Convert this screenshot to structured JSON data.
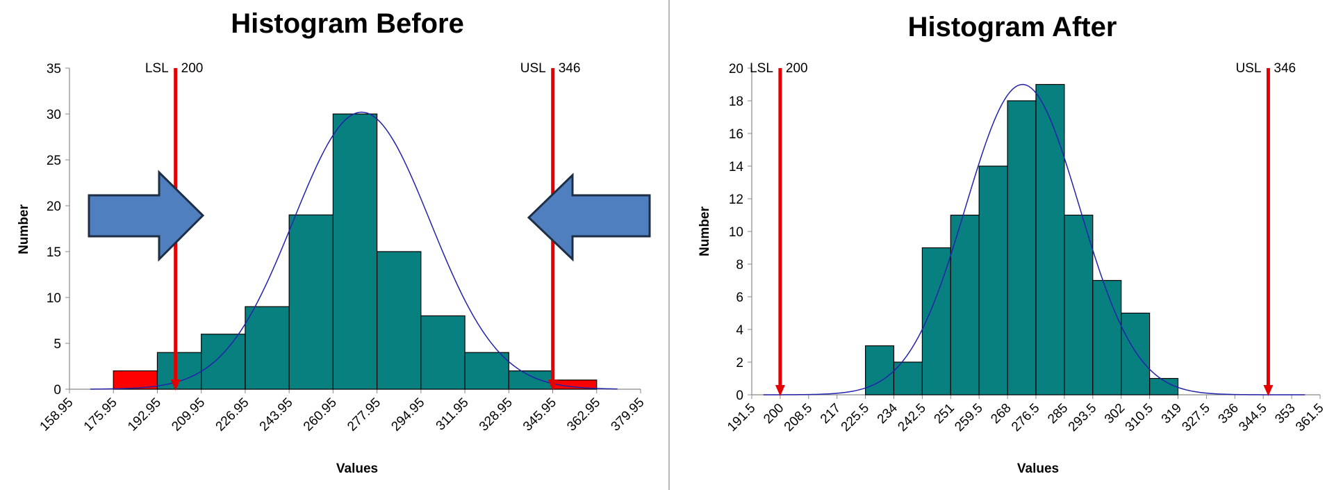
{
  "chart_data": [
    {
      "type": "bar",
      "title": "Histogram Before",
      "xlabel": "Values",
      "ylabel": "Number",
      "ylim": [
        0,
        35
      ],
      "y_ticks": [
        "0",
        "5",
        "10",
        "15",
        "20",
        "25",
        "30",
        "35"
      ],
      "x_ticks": [
        "158.95",
        "175.95",
        "192.95",
        "209.95",
        "226.95",
        "243.95",
        "260.95",
        "277.95",
        "294.95",
        "311.95",
        "328.95",
        "345.95",
        "362.95",
        "379.95"
      ],
      "bins": [
        {
          "from": 175.95,
          "to": 192.95,
          "value": 2,
          "color": "#ff0000"
        },
        {
          "from": 192.95,
          "to": 209.95,
          "value": 4,
          "color": "#088080"
        },
        {
          "from": 209.95,
          "to": 226.95,
          "value": 6,
          "color": "#088080"
        },
        {
          "from": 226.95,
          "to": 243.95,
          "value": 9,
          "color": "#088080"
        },
        {
          "from": 243.95,
          "to": 260.95,
          "value": 19,
          "color": "#088080"
        },
        {
          "from": 260.95,
          "to": 277.95,
          "value": 30,
          "color": "#088080"
        },
        {
          "from": 277.95,
          "to": 294.95,
          "value": 15,
          "color": "#088080"
        },
        {
          "from": 294.95,
          "to": 311.95,
          "value": 8,
          "color": "#088080"
        },
        {
          "from": 311.95,
          "to": 328.95,
          "value": 4,
          "color": "#088080"
        },
        {
          "from": 328.95,
          "to": 345.95,
          "value": 2,
          "color": "#088080"
        },
        {
          "from": 345.95,
          "to": 362.95,
          "value": 1,
          "color": "#ff0000"
        }
      ],
      "normal_curve": {
        "mean": 272,
        "sd": 26.5,
        "peak": 30.2,
        "from": 167,
        "to": 371,
        "color": "#2222aa"
      },
      "spec_limits": [
        {
          "name": "LSL",
          "value_label": "200",
          "at": 200
        },
        {
          "name": "USL",
          "value_label": "346",
          "at": 346
        }
      ],
      "arrows": [
        "right",
        "left"
      ]
    },
    {
      "type": "bar",
      "title": "Histogram After",
      "xlabel": "Values",
      "ylabel": "Number",
      "ylim": [
        0,
        20
      ],
      "y_ticks": [
        "0",
        "2",
        "4",
        "6",
        "8",
        "10",
        "12",
        "14",
        "16",
        "18",
        "20"
      ],
      "x_ticks": [
        "191.5",
        "200",
        "208.5",
        "217",
        "225.5",
        "234",
        "242.5",
        "251",
        "259.5",
        "268",
        "276.5",
        "285",
        "293.5",
        "302",
        "310.5",
        "319",
        "327.5",
        "336",
        "344.5",
        "353",
        "361.5"
      ],
      "bins": [
        {
          "from": 225.5,
          "to": 234,
          "value": 3,
          "color": "#088080"
        },
        {
          "from": 234,
          "to": 242.5,
          "value": 2,
          "color": "#088080"
        },
        {
          "from": 242.5,
          "to": 251,
          "value": 9,
          "color": "#088080"
        },
        {
          "from": 251,
          "to": 259.5,
          "value": 11,
          "color": "#088080"
        },
        {
          "from": 259.5,
          "to": 268,
          "value": 14,
          "color": "#088080"
        },
        {
          "from": 268,
          "to": 276.5,
          "value": 18,
          "color": "#088080"
        },
        {
          "from": 276.5,
          "to": 285,
          "value": 19,
          "color": "#088080"
        },
        {
          "from": 285,
          "to": 293.5,
          "value": 11,
          "color": "#088080"
        },
        {
          "from": 293.5,
          "to": 302,
          "value": 7,
          "color": "#088080"
        },
        {
          "from": 302,
          "to": 310.5,
          "value": 5,
          "color": "#088080"
        },
        {
          "from": 310.5,
          "to": 319,
          "value": 1,
          "color": "#088080"
        }
      ],
      "normal_curve": {
        "mean": 272.5,
        "sd": 17,
        "peak": 19,
        "from": 195,
        "to": 357,
        "color": "#2222aa"
      },
      "spec_limits": [
        {
          "name": "LSL",
          "value_label": "200",
          "at": 200
        },
        {
          "name": "USL",
          "value_label": "346",
          "at": 346
        }
      ],
      "arrows": []
    }
  ]
}
